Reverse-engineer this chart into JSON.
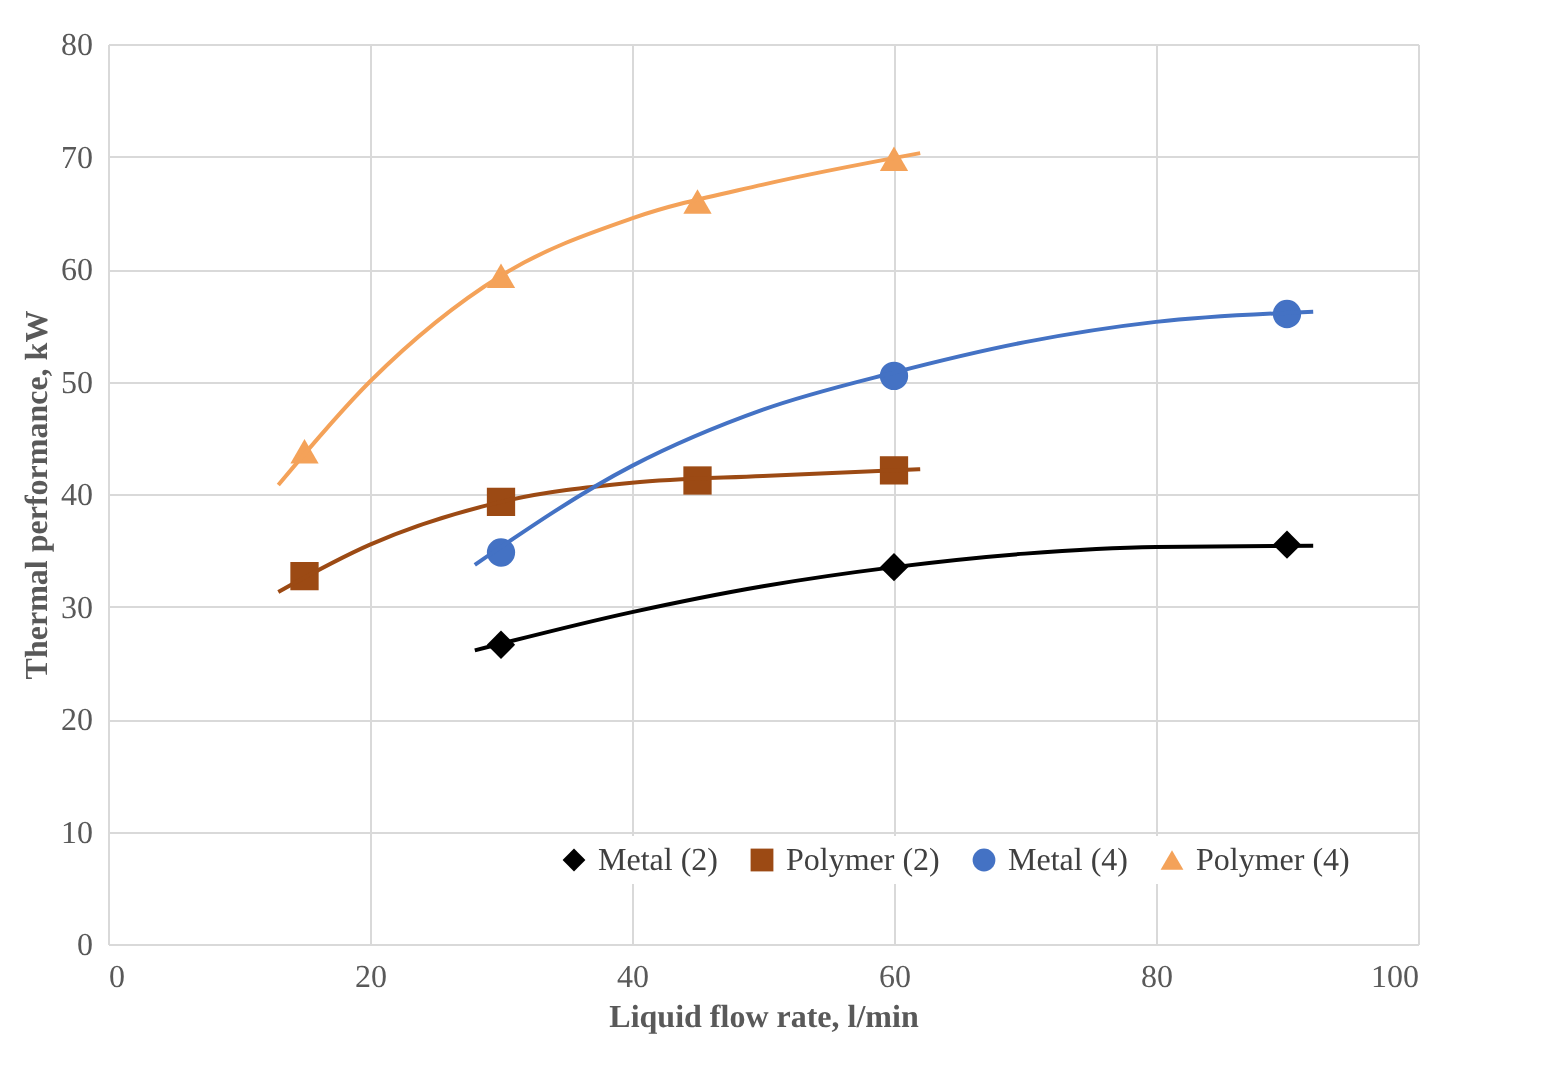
{
  "chart_data": {
    "type": "scatter",
    "xlabel": "Liquid flow rate, l/min",
    "ylabel": "Thermal performance, kW",
    "xlim": [
      0,
      100
    ],
    "xticks": [
      0,
      20,
      40,
      60,
      80,
      100
    ],
    "ylim": [
      0,
      80
    ],
    "yticks": [
      0,
      10,
      20,
      30,
      40,
      50,
      60,
      70,
      80
    ],
    "grid": true,
    "legend": "bottom right",
    "series": [
      {
        "name": "Metal (2)",
        "color": "#000000",
        "marker": "diamond",
        "x": [
          30,
          60,
          90
        ],
        "values": [
          26.6,
          33.5,
          35.5
        ]
      },
      {
        "name": "Polymer (2)",
        "color": "#9c4a14",
        "marker": "square",
        "x": [
          15,
          30,
          45,
          60
        ],
        "values": [
          32.7,
          39.3,
          41.2,
          42.1
        ]
      },
      {
        "name": "Metal (4)",
        "color": "#4472c4",
        "marker": "circle",
        "x": [
          30,
          60,
          90
        ],
        "values": [
          34.8,
          50.5,
          56
        ]
      },
      {
        "name": "Polymer (4)",
        "color": "#f4a259",
        "marker": "triangle",
        "x": [
          15,
          30,
          45,
          60
        ],
        "values": [
          43.8,
          59.4,
          66,
          69.8
        ]
      },
      {
        "type": "line",
        "color": "#000000",
        "x": [
          28,
          40,
          50,
          60,
          70,
          80,
          92
        ],
        "values": [
          26.1,
          29.5,
          31.8,
          33.5,
          34.7,
          35.3,
          35.4
        ]
      },
      {
        "type": "line",
        "color": "#9c4a14",
        "x": [
          13,
          20,
          30,
          40,
          50,
          62
        ],
        "values": [
          31.3,
          35.5,
          39.3,
          41,
          41.6,
          42.2
        ]
      },
      {
        "type": "line",
        "color": "#4472c4",
        "x": [
          28,
          40,
          50,
          60,
          70,
          80,
          92
        ],
        "values": [
          33.7,
          42.5,
          47.5,
          50.8,
          53.5,
          55.3,
          56.2
        ]
      },
      {
        "type": "line",
        "color": "#f4a259",
        "x": [
          13,
          20,
          30,
          40,
          50,
          62
        ],
        "values": [
          40.8,
          50,
          59.4,
          64.5,
          67.5,
          70.3
        ]
      }
    ]
  }
}
